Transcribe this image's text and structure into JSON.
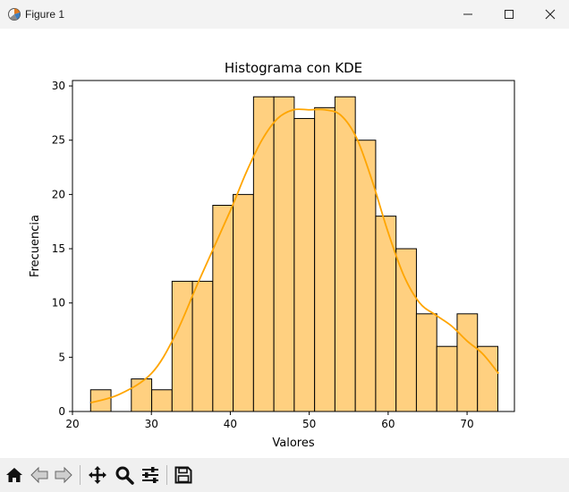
{
  "window": {
    "title": "Figure 1"
  },
  "colors": {
    "bar_fill": "#ffd080",
    "bar_edge": "#000000",
    "kde_line": "#ffa500"
  },
  "toolbar": {
    "buttons": [
      {
        "name": "home-icon"
      },
      {
        "name": "back-icon"
      },
      {
        "name": "forward-icon"
      },
      {
        "name": "pan-icon"
      },
      {
        "name": "zoom-icon"
      },
      {
        "name": "configure-subplots-icon"
      },
      {
        "name": "save-icon"
      }
    ]
  },
  "chart_data": {
    "type": "bar",
    "title": "Histograma con KDE",
    "xlabel": "Valores",
    "ylabel": "Frecuencia",
    "xlim": [
      20,
      76
    ],
    "ylim": [
      0,
      30.5
    ],
    "xticks": [
      20,
      30,
      40,
      50,
      60,
      70
    ],
    "yticks": [
      0,
      5,
      10,
      15,
      20,
      25,
      30
    ],
    "grid": false,
    "bins": {
      "start": 22.3,
      "width": 2.58,
      "counts": [
        2,
        0,
        3,
        2,
        12,
        12,
        19,
        20,
        29,
        29,
        27,
        28,
        29,
        25,
        18,
        15,
        9,
        6,
        9,
        6
      ]
    },
    "kde": {
      "x": [
        22.3,
        26,
        30,
        33,
        36,
        40,
        42,
        44,
        46,
        48,
        50,
        52,
        54,
        56,
        58,
        60,
        62,
        64,
        66,
        68,
        70,
        72,
        74
      ],
      "y": [
        0.8,
        1.6,
        3.5,
        7.0,
        12.0,
        18.5,
        22.0,
        25.0,
        27.0,
        27.8,
        27.8,
        27.8,
        27.3,
        25.2,
        21.2,
        16.5,
        12.5,
        10.0,
        8.9,
        7.9,
        6.5,
        5.3,
        3.5
      ]
    }
  }
}
